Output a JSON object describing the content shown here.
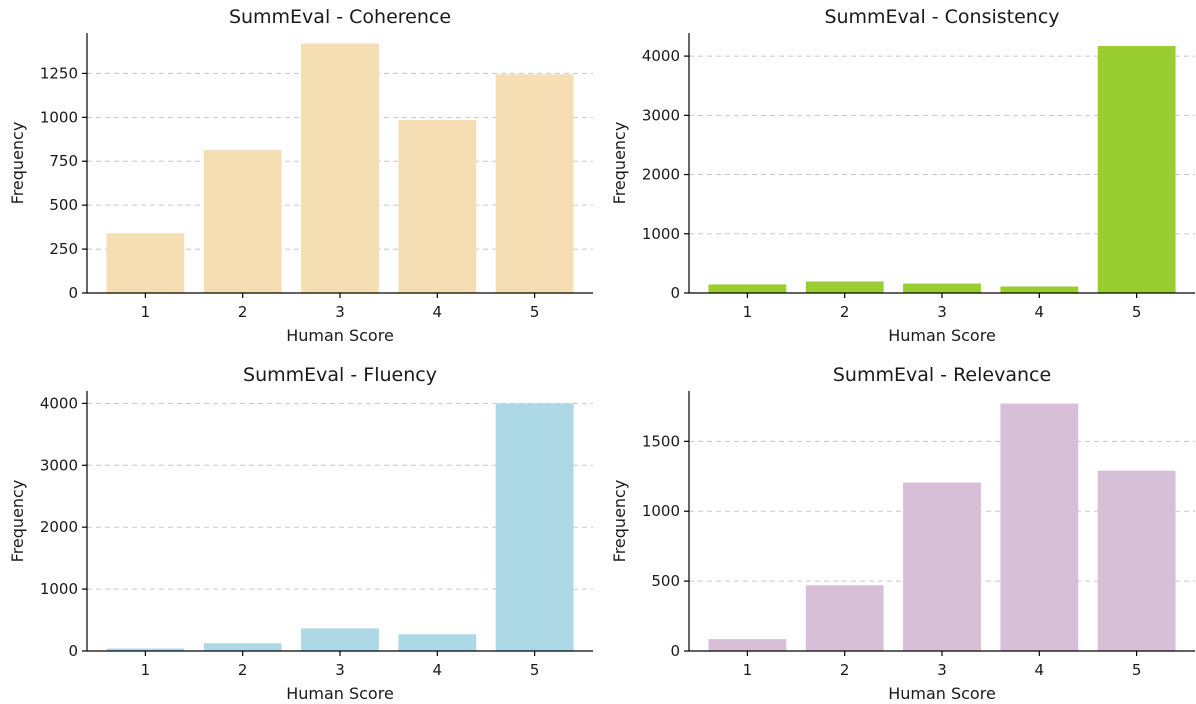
{
  "chart_data": [
    {
      "type": "bar",
      "title": "SummEval - Coherence",
      "xlabel": "Human Score",
      "ylabel": "Frequency",
      "categories": [
        "1",
        "2",
        "3",
        "4",
        "5"
      ],
      "values": [
        340,
        815,
        1420,
        985,
        1245
      ],
      "color": "#f5deb3",
      "ylim": [
        0,
        1480
      ],
      "yticks": [
        0,
        250,
        500,
        750,
        1000,
        1250
      ],
      "grid": true,
      "grid_axis": "y"
    },
    {
      "type": "bar",
      "title": "SummEval - Consistency",
      "xlabel": "Human Score",
      "ylabel": "Frequency",
      "categories": [
        "1",
        "2",
        "3",
        "4",
        "5"
      ],
      "values": [
        145,
        195,
        160,
        110,
        4170
      ],
      "color": "#9acd32",
      "ylim": [
        0,
        4390
      ],
      "yticks": [
        0,
        1000,
        2000,
        3000,
        4000
      ],
      "grid": true,
      "grid_axis": "y"
    },
    {
      "type": "bar",
      "title": "SummEval - Fluency",
      "xlabel": "Human Score",
      "ylabel": "Frequency",
      "categories": [
        "1",
        "2",
        "3",
        "4",
        "5"
      ],
      "values": [
        40,
        125,
        365,
        270,
        4000
      ],
      "color": "#add8e6",
      "ylim": [
        0,
        4200
      ],
      "yticks": [
        0,
        1000,
        2000,
        3000,
        4000
      ],
      "grid": true,
      "grid_axis": "y"
    },
    {
      "type": "bar",
      "title": "SummEval - Relevance",
      "xlabel": "Human Score",
      "ylabel": "Frequency",
      "categories": [
        "1",
        "2",
        "3",
        "4",
        "5"
      ],
      "values": [
        85,
        470,
        1205,
        1770,
        1290
      ],
      "color": "#d8bfd8",
      "ylim": [
        0,
        1860
      ],
      "yticks": [
        0,
        500,
        1000,
        1500
      ],
      "grid": true,
      "grid_axis": "y"
    }
  ]
}
